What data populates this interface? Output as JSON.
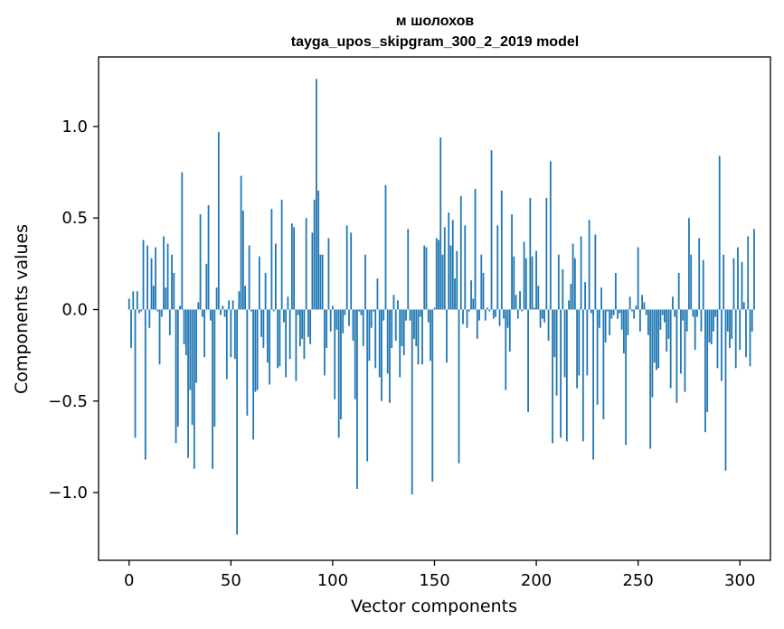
{
  "chart_data": {
    "type": "bar",
    "title": "м шолохов",
    "subtitle": "tayga_upos_skipgram_300_2_2019 model",
    "xlabel": "Vector components",
    "ylabel": "Components values",
    "xlim": [
      -15,
      315
    ],
    "ylim": [
      -1.37,
      1.38
    ],
    "xticks": [
      0,
      50,
      100,
      150,
      200,
      250,
      300
    ],
    "xtick_labels": [
      "0",
      "50",
      "100",
      "150",
      "200",
      "250",
      "300"
    ],
    "yticks": [
      1.0,
      0.5,
      0.0,
      -0.5,
      -1.0
    ],
    "ytick_labels": [
      "1.0",
      "0.5",
      "0.0",
      "−0.5",
      "−1.0"
    ],
    "bar_color": "#1f77b4",
    "grid": false,
    "values": [
      0.06,
      -0.21,
      0.1,
      -0.7,
      0.1,
      -0.02,
      -0.01,
      0.38,
      -0.82,
      0.35,
      -0.1,
      0.28,
      0.13,
      0.34,
      -0.01,
      -0.3,
      -0.04,
      0.4,
      0.12,
      0.36,
      -0.14,
      0.3,
      0.2,
      -0.73,
      -0.64,
      0.02,
      0.75,
      -0.19,
      -0.25,
      -0.81,
      -0.44,
      -0.63,
      -0.87,
      -0.4,
      0.04,
      0.52,
      -0.04,
      -0.26,
      0.25,
      0.57,
      -0.06,
      -0.87,
      -0.64,
      0.12,
      0.97,
      -0.03,
      0.02,
      -0.04,
      -0.38,
      0.05,
      -0.26,
      0.05,
      -0.27,
      -1.23,
      0.1,
      0.73,
      0.54,
      0.13,
      -0.58,
      0.35,
      -0.01,
      -0.71,
      -0.45,
      -0.44,
      0.29,
      -0.15,
      -0.21,
      0.2,
      -0.29,
      -0.41,
      0.55,
      -0.01,
      0.36,
      -0.32,
      -0.31,
      0.6,
      -0.07,
      -0.37,
      0.07,
      -0.27,
      0.47,
      0.45,
      -0.39,
      -0.03,
      -0.2,
      -0.16,
      -0.27,
      0.5,
      -0.15,
      -0.19,
      0.42,
      0.6,
      1.26,
      0.65,
      0.3,
      0.3,
      -0.36,
      -0.21,
      0.39,
      -0.12,
      0.02,
      -0.49,
      -0.11,
      -0.7,
      -0.6,
      -0.13,
      -0.03,
      0.46,
      -0.09,
      0.42,
      -0.17,
      -0.49,
      -0.98,
      -0.01,
      -0.03,
      -0.2,
      0.3,
      -0.83,
      -0.28,
      -0.1,
      -0.01,
      -0.32,
      0.17,
      -0.37,
      -0.5,
      -0.06,
      0.68,
      -0.35,
      -0.51,
      -0.21,
      0.08,
      -0.17,
      0.05,
      -0.37,
      -0.2,
      -0.25,
      -0.06,
      0.44,
      -0.06,
      -1.01,
      -0.16,
      -0.2,
      -0.3,
      -0.04,
      -0.3,
      0.35,
      0.34,
      -0.07,
      -0.28,
      -0.94,
      0.01,
      0.39,
      0.38,
      0.94,
      0.3,
      0.45,
      -0.29,
      0.53,
      0.35,
      0.49,
      0.17,
      0.32,
      -0.84,
      0.62,
      -0.08,
      0.46,
      -0.1,
      -0.01,
      0.16,
      0.06,
      0.66,
      -0.16,
      -0.06,
      0.3,
      0.2,
      -0.06,
      0.01,
      -0.01,
      0.87,
      -0.05,
      -0.04,
      0.46,
      -0.09,
      0.65,
      -0.05,
      -0.44,
      -0.1,
      -0.23,
      0.52,
      0.29,
      0.08,
      -0.05,
      0.1,
      -0.01,
      0.37,
      0.28,
      -0.56,
      0.61,
      0.29,
      0.01,
      0.32,
      0.13,
      -0.1,
      -0.05,
      -0.07,
      0.61,
      -0.17,
      0.81,
      -0.73,
      -0.26,
      -0.47,
      0.3,
      -0.7,
      0.22,
      -0.37,
      -0.72,
      0.05,
      0.14,
      0.36,
      0.28,
      -0.43,
      -0.36,
      0.4,
      -0.72,
      0.15,
      -0.36,
      0.49,
      -0.02,
      -0.82,
      0.41,
      -0.52,
      -0.1,
      0.12,
      -0.6,
      -0.18,
      -0.01,
      -0.14,
      -0.05,
      -0.03,
      0.2,
      -0.05,
      -0.02,
      -0.11,
      -0.24,
      -0.74,
      -0.14,
      0.07,
      -0.01,
      -0.05,
      0.02,
      0.34,
      -0.12,
      0.08,
      0.04,
      -0.03,
      -0.14,
      -0.76,
      -0.48,
      -0.29,
      -0.33,
      -0.32,
      -0.11,
      -0.03,
      -0.07,
      -0.23,
      -0.16,
      -0.43,
      0.07,
      -0.04,
      -0.51,
      0.2,
      -0.35,
      -0.06,
      -0.45,
      -0.12,
      0.5,
      0.3,
      -0.04,
      -0.22,
      -0.04,
      0.39,
      -0.12,
      0.27,
      -0.67,
      -0.56,
      -0.18,
      -0.19,
      -0.12,
      -0.04,
      -0.32,
      0.84,
      -0.39,
      0.3,
      -0.88,
      -0.12,
      -0.21,
      -0.16,
      0.28,
      -0.32,
      0.34,
      -0.22,
      0.26,
      0.04,
      -0.26,
      0.4,
      -0.31,
      -0.12,
      0.44
    ]
  }
}
